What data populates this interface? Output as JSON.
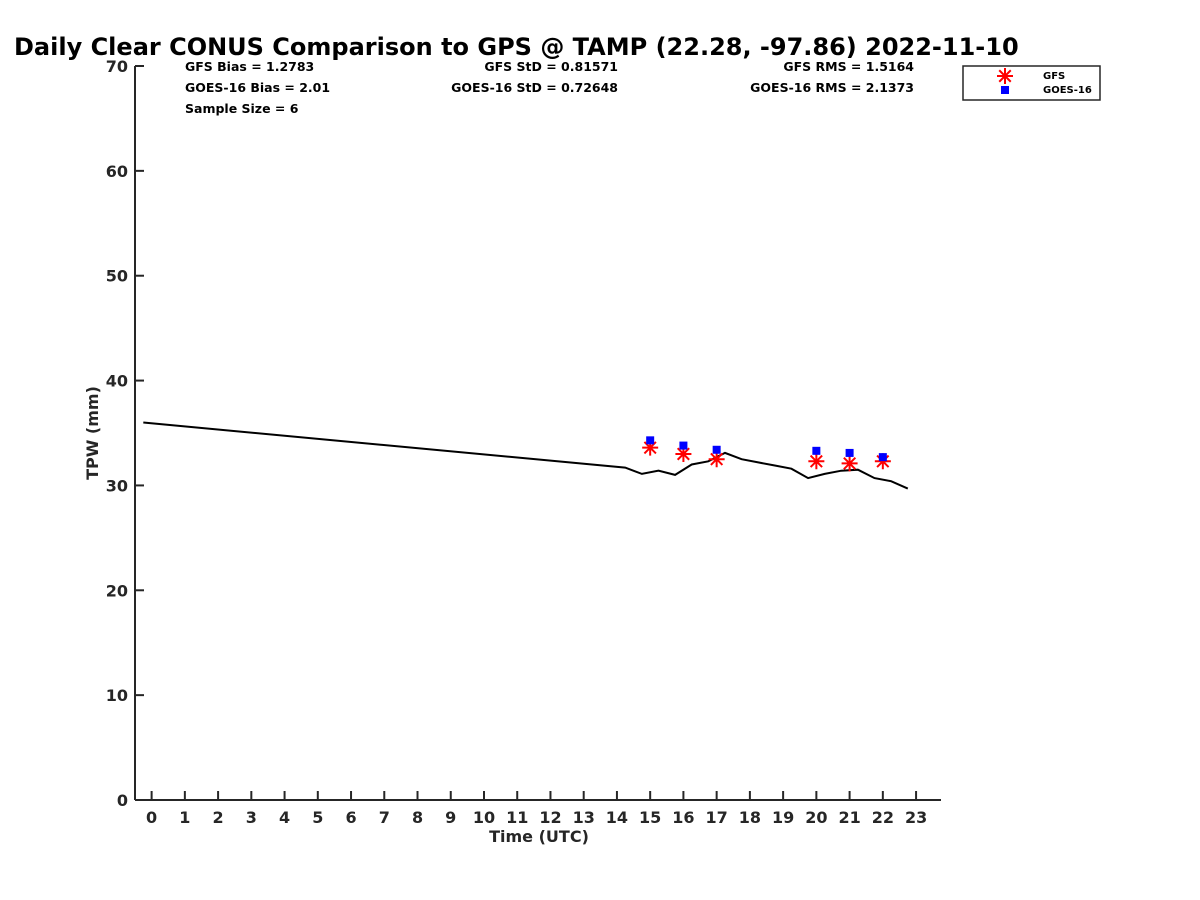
{
  "chart_data": {
    "type": "scatter",
    "title": "Daily Clear CONUS Comparison to GPS @ TAMP (22.28, -97.86) 2022-11-10",
    "xlabel": "Time (UTC)",
    "ylabel": "TPW (mm)",
    "xlim": [
      -0.5,
      23.75
    ],
    "ylim": [
      0,
      70
    ],
    "xticks": [
      0,
      1,
      2,
      3,
      4,
      5,
      6,
      7,
      8,
      9,
      10,
      11,
      12,
      13,
      14,
      15,
      16,
      17,
      18,
      19,
      20,
      21,
      22,
      23
    ],
    "yticks": [
      0,
      10,
      20,
      30,
      40,
      50,
      60,
      70
    ],
    "grid": false,
    "legend_position": "top-right",
    "stats": {
      "gfs_bias": "GFS Bias = 1.2783",
      "goes_bias": "GOES-16 Bias = 2.01",
      "sample_size": "Sample Size = 6",
      "gfs_std": "GFS StD = 0.81571",
      "goes_std": "GOES-16 StD = 0.72648",
      "gfs_rms": "GFS RMS = 1.5164",
      "goes_rms": "GOES-16 RMS = 2.1373"
    },
    "series": [
      {
        "name": "",
        "type": "line",
        "color": "#000000",
        "x": [
          -0.25,
          14.25,
          14.75,
          15.25,
          15.75,
          16.25,
          16.75,
          17.25,
          17.75,
          18.25,
          18.75,
          19.25,
          19.75,
          20.25,
          20.75,
          21.25,
          21.75,
          22.25,
          22.75
        ],
        "y": [
          36.0,
          31.7,
          31.1,
          31.4,
          31.0,
          32.0,
          32.3,
          33.1,
          32.5,
          32.2,
          31.9,
          31.6,
          30.7,
          31.1,
          31.4,
          31.5,
          30.7,
          30.4,
          29.7
        ]
      },
      {
        "name": "GFS",
        "type": "scatter",
        "marker": "asterisk",
        "color": "#ff0000",
        "x": [
          15,
          16,
          17,
          20,
          21,
          22
        ],
        "y": [
          33.6,
          33.0,
          32.5,
          32.3,
          32.1,
          32.3
        ]
      },
      {
        "name": "GOES-16",
        "type": "scatter",
        "marker": "square",
        "color": "#0000ff",
        "x": [
          15,
          16,
          17,
          20,
          21,
          22
        ],
        "y": [
          34.3,
          33.8,
          33.4,
          33.3,
          33.1,
          32.7
        ]
      }
    ]
  }
}
